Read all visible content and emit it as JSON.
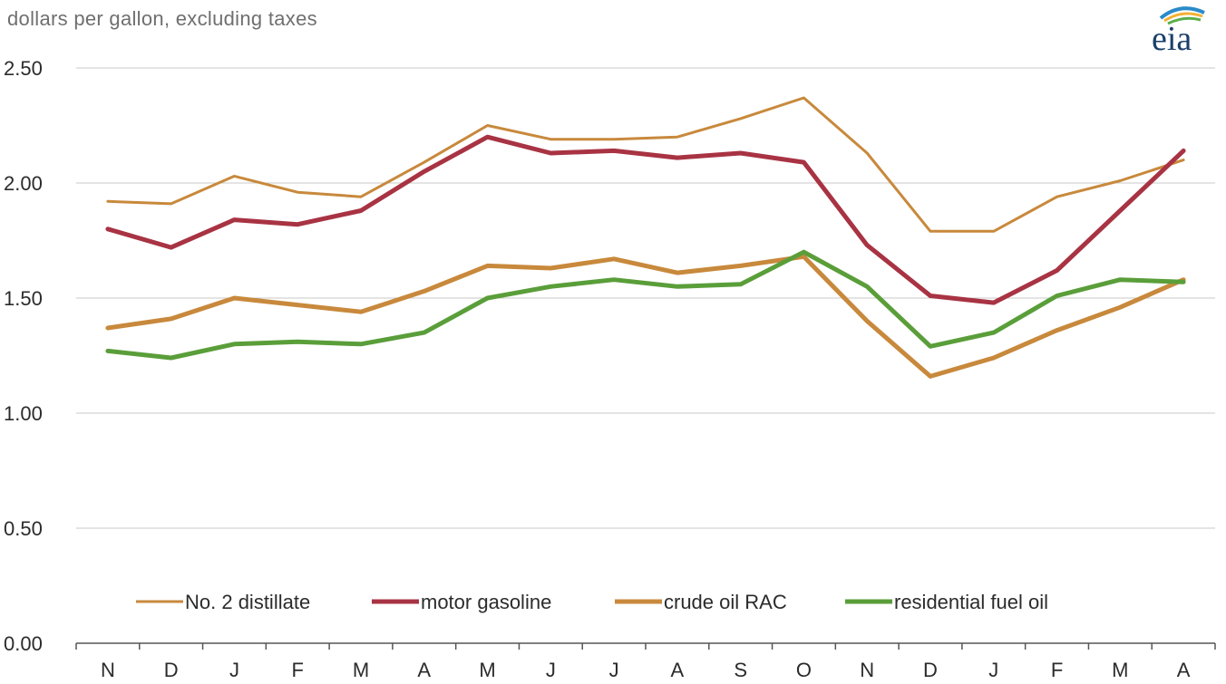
{
  "logo_text": "eia",
  "chart_data": {
    "type": "line",
    "title": "",
    "ylabel": "dollars per gallon, excluding taxes",
    "xlabel": "",
    "categories": [
      "N",
      "D",
      "J",
      "F",
      "M",
      "A",
      "M",
      "J",
      "J",
      "A",
      "S",
      "O",
      "N",
      "D",
      "J",
      "F",
      "M",
      "A"
    ],
    "yticks": [
      "0.00",
      "0.50",
      "1.00",
      "1.50",
      "2.00",
      "2.50"
    ],
    "ylim": [
      0,
      2.5
    ],
    "grid": true,
    "legend_position": "bottom",
    "series": [
      {
        "name": "No. 2 distillate",
        "color": "#C8893C",
        "stroke": "thin",
        "values": [
          1.92,
          1.91,
          2.03,
          1.96,
          1.94,
          2.09,
          2.25,
          2.19,
          2.19,
          2.2,
          2.28,
          2.37,
          2.13,
          1.79,
          1.79,
          1.94,
          2.01,
          2.1
        ]
      },
      {
        "name": "motor gasoline",
        "color": "#A83343",
        "stroke": "thick",
        "values": [
          1.8,
          1.72,
          1.84,
          1.82,
          1.88,
          2.05,
          2.2,
          2.13,
          2.14,
          2.11,
          2.13,
          2.09,
          1.73,
          1.51,
          1.48,
          1.62,
          1.88,
          2.14
        ]
      },
      {
        "name": "crude oil RAC",
        "color": "#C8893C",
        "stroke": "thick",
        "values": [
          1.37,
          1.41,
          1.5,
          1.47,
          1.44,
          1.53,
          1.64,
          1.63,
          1.67,
          1.61,
          1.64,
          1.68,
          1.4,
          1.16,
          1.24,
          1.36,
          1.46,
          1.58
        ]
      },
      {
        "name": "residential fuel oil",
        "color": "#5A9E3A",
        "stroke": "thick",
        "values": [
          1.27,
          1.24,
          1.3,
          1.31,
          1.3,
          1.35,
          1.5,
          1.55,
          1.58,
          1.55,
          1.56,
          1.7,
          1.55,
          1.29,
          1.35,
          1.51,
          1.58,
          1.57
        ]
      }
    ]
  }
}
